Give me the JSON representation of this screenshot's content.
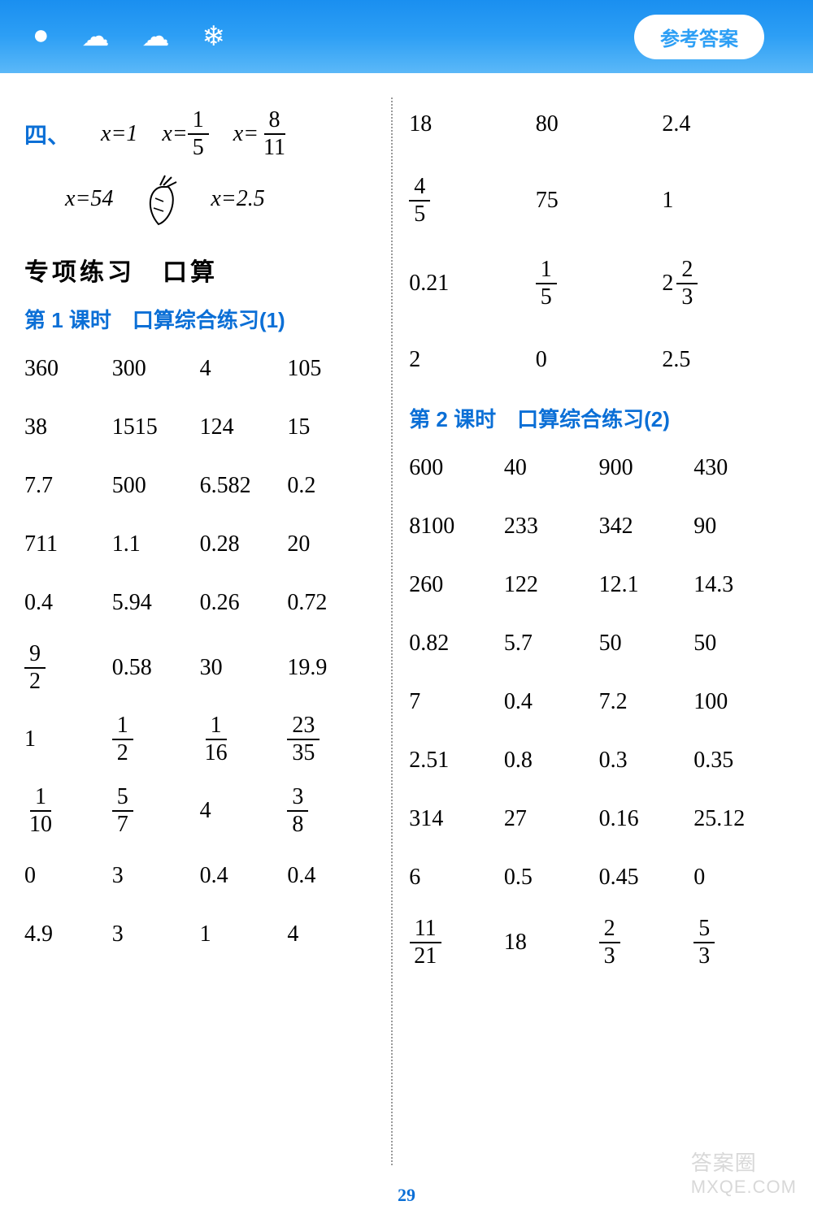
{
  "header": {
    "pill_label": "参考答案",
    "pill_bg": "#ffffff",
    "pill_color": "#2d9ff5",
    "bg_gradient": [
      "#1a8ff0",
      "#5bb8f8"
    ],
    "decorations": [
      "●",
      "☁",
      "☁",
      "❄"
    ]
  },
  "left": {
    "section4_label": "四、",
    "eq_row1": [
      {
        "lhs": "x",
        "op": "=",
        "rhs_text": "1"
      },
      {
        "lhs": "x",
        "op": "=",
        "rhs_frac": {
          "num": "1",
          "den": "5"
        }
      },
      {
        "lhs": "x",
        "op": "=",
        "rhs_frac": {
          "num": "8",
          "den": "11"
        }
      }
    ],
    "eq_row2": [
      {
        "lhs": "x",
        "op": "=",
        "rhs_text": "54"
      },
      {
        "icon": "carrot"
      },
      {
        "lhs": "x",
        "op": "=",
        "rhs_text": "2.5"
      }
    ],
    "special_title": "专项练习　口算",
    "lesson1_title": "第 1 课时　口算综合练习(1)",
    "grid1": {
      "cols": 4,
      "rows": [
        [
          "360",
          "300",
          "4",
          "105"
        ],
        [
          "38",
          "1515",
          "124",
          "15"
        ],
        [
          "7.7",
          "500",
          "6.582",
          "0.2"
        ],
        [
          "711",
          "1.1",
          "0.28",
          "20"
        ],
        [
          "0.4",
          "5.94",
          "0.26",
          "0.72"
        ],
        [
          {
            "frac": {
              "num": "9",
              "den": "2"
            }
          },
          "0.58",
          "30",
          "19.9"
        ],
        [
          "1",
          {
            "frac": {
              "num": "1",
              "den": "2"
            }
          },
          {
            "frac": {
              "num": "1",
              "den": "16"
            }
          },
          {
            "frac": {
              "num": "23",
              "den": "35"
            }
          }
        ],
        [
          {
            "frac": {
              "num": "1",
              "den": "10"
            }
          },
          {
            "frac": {
              "num": "5",
              "den": "7"
            }
          },
          "4",
          {
            "frac": {
              "num": "3",
              "den": "8"
            }
          }
        ],
        [
          "0",
          "3",
          "0.4",
          "0.4"
        ],
        [
          "4.9",
          "3",
          "1",
          "4"
        ]
      ]
    }
  },
  "right": {
    "top_grid": {
      "cols": 3,
      "rows": [
        [
          "18",
          "80",
          "2.4"
        ],
        [
          {
            "frac": {
              "num": "4",
              "den": "5"
            }
          },
          "75",
          "1"
        ],
        [
          "0.21",
          {
            "frac": {
              "num": "1",
              "den": "5"
            }
          },
          {
            "mixed": {
              "whole": "2",
              "num": "2",
              "den": "3"
            }
          }
        ],
        [
          "2",
          "0",
          "2.5"
        ]
      ]
    },
    "lesson2_title": "第 2 课时　口算综合练习(2)",
    "grid2": {
      "cols": 4,
      "rows": [
        [
          "600",
          "40",
          "900",
          "430"
        ],
        [
          "8100",
          "233",
          "342",
          "90"
        ],
        [
          "260",
          "122",
          "12.1",
          "14.3"
        ],
        [
          "0.82",
          "5.7",
          "50",
          "50"
        ],
        [
          "7",
          "0.4",
          "7.2",
          "100"
        ],
        [
          "2.51",
          "0.8",
          "0.3",
          "0.35"
        ],
        [
          "314",
          "27",
          "0.16",
          "25.12"
        ],
        [
          "6",
          "0.5",
          "0.45",
          "0"
        ],
        [
          {
            "frac": {
              "num": "11",
              "den": "21"
            }
          },
          "18",
          {
            "frac": {
              "num": "2",
              "den": "3"
            }
          },
          {
            "frac": {
              "num": "5",
              "den": "3"
            }
          }
        ]
      ]
    }
  },
  "page_number": "29",
  "watermark": {
    "line1": "答案圈",
    "line2": "MXQE.COM"
  },
  "colors": {
    "heading_blue": "#0b6fd6",
    "text_black": "#000000",
    "divider": "#999999"
  },
  "typography": {
    "body_fontsize": 28,
    "title_fontsize": 30,
    "lesson_fontsize": 26
  }
}
